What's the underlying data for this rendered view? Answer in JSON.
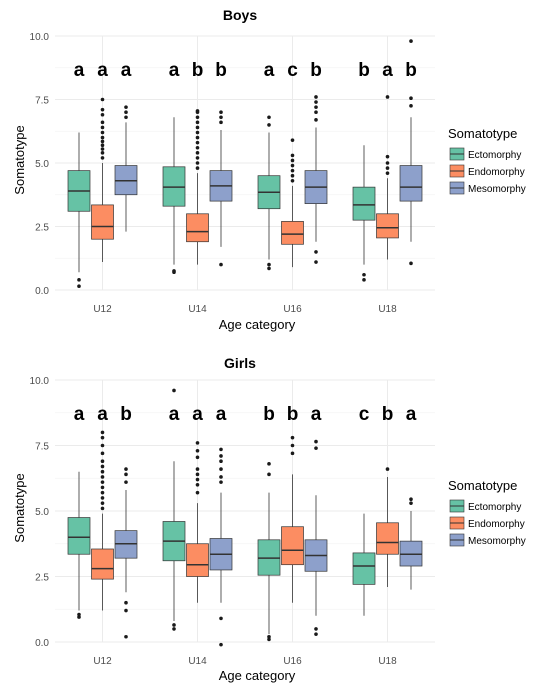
{
  "colors": {
    "Ectomorphy": "#66c2a5",
    "Endomorphy": "#fc8d62",
    "Mesomorphy": "#8da0cb",
    "grid": "#ebebeb",
    "text": "#000000",
    "axis_text": "#4d4d4d",
    "outline": "#333333"
  },
  "legend": {
    "title": "Somatotype",
    "items": [
      "Ectomorphy",
      "Endomorphy",
      "Mesomorphy"
    ]
  },
  "chart_data": [
    {
      "type": "box",
      "title": "Boys",
      "xlabel": "Age category",
      "ylabel": "Somatotype",
      "ylim": [
        0,
        10
      ],
      "yticks": [
        "0.0",
        "2.5",
        "5.0",
        "7.5",
        "10.0"
      ],
      "categories": [
        "U12",
        "U14",
        "U16",
        "U18"
      ],
      "series": [
        {
          "name": "Ectomorphy",
          "boxes": [
            {
              "whislo": 0.7,
              "q1": 3.1,
              "med": 3.9,
              "q3": 4.7,
              "whishi": 6.2,
              "fliers": [
                0.4,
                0.15
              ]
            },
            {
              "whislo": 1.0,
              "q1": 3.3,
              "med": 4.05,
              "q3": 4.85,
              "whishi": 6.8,
              "fliers": [
                0.75,
                0.7
              ]
            },
            {
              "whislo": 1.2,
              "q1": 3.2,
              "med": 3.85,
              "q3": 4.5,
              "whishi": 6.2,
              "fliers": [
                1.0,
                0.85,
                6.5,
                6.8
              ]
            },
            {
              "whislo": 1.0,
              "q1": 2.75,
              "med": 3.35,
              "q3": 4.05,
              "whishi": 5.7,
              "fliers": [
                0.6,
                0.4
              ]
            }
          ]
        },
        {
          "name": "Endomorphy",
          "boxes": [
            {
              "whislo": 1.1,
              "q1": 2.0,
              "med": 2.5,
              "q3": 3.35,
              "whishi": 5.0,
              "fliers": [
                5.2,
                5.4,
                5.55,
                5.7,
                5.85,
                6.0,
                6.2,
                6.4,
                6.6,
                6.9,
                7.1,
                7.5
              ]
            },
            {
              "whislo": 1.0,
              "q1": 1.9,
              "med": 2.3,
              "q3": 3.0,
              "whishi": 4.6,
              "fliers": [
                4.8,
                5.0,
                5.2,
                5.4,
                5.6,
                5.8,
                6.0,
                6.2,
                6.4,
                6.6,
                6.8,
                7.0,
                7.05
              ]
            },
            {
              "whislo": 0.9,
              "q1": 1.8,
              "med": 2.2,
              "q3": 2.7,
              "whishi": 4.1,
              "fliers": [
                4.3,
                4.5,
                4.7,
                4.9,
                5.1,
                5.3,
                5.9
              ]
            },
            {
              "whislo": 1.2,
              "q1": 2.05,
              "med": 2.45,
              "q3": 3.0,
              "whishi": 4.4,
              "fliers": [
                4.6,
                4.8,
                5.0,
                5.25,
                7.6
              ]
            }
          ]
        },
        {
          "name": "Mesomorphy",
          "boxes": [
            {
              "whislo": 2.3,
              "q1": 3.75,
              "med": 4.3,
              "q3": 4.9,
              "whishi": 6.6,
              "fliers": [
                6.8,
                7.0,
                7.2
              ]
            },
            {
              "whislo": 1.7,
              "q1": 3.5,
              "med": 4.1,
              "q3": 4.7,
              "whishi": 6.3,
              "fliers": [
                6.6,
                6.8,
                7.0,
                1.0
              ]
            },
            {
              "whislo": 1.9,
              "q1": 3.4,
              "med": 4.05,
              "q3": 4.7,
              "whishi": 6.4,
              "fliers": [
                1.5,
                1.1,
                6.7,
                7.0,
                7.2,
                7.4,
                7.6
              ]
            },
            {
              "whislo": 1.9,
              "q1": 3.5,
              "med": 4.05,
              "q3": 4.9,
              "whishi": 6.8,
              "fliers": [
                1.05,
                7.25,
                7.55,
                9.8
              ]
            }
          ]
        }
      ],
      "letters": [
        [
          "a",
          "a",
          "a"
        ],
        [
          "a",
          "b",
          "b"
        ],
        [
          "a",
          "c",
          "b"
        ],
        [
          "b",
          "a",
          "b"
        ]
      ]
    },
    {
      "type": "box",
      "title": "Girls",
      "xlabel": "Age category",
      "ylabel": "Somatotype",
      "ylim": [
        0,
        10
      ],
      "yticks": [
        "0.0",
        "2.5",
        "5.0",
        "7.5",
        "10.0"
      ],
      "categories": [
        "U12",
        "U14",
        "U16",
        "U18"
      ],
      "series": [
        {
          "name": "Ectomorphy",
          "boxes": [
            {
              "whislo": 1.2,
              "q1": 3.35,
              "med": 4.0,
              "q3": 4.75,
              "whishi": 6.5,
              "fliers": [
                1.05,
                0.95
              ]
            },
            {
              "whislo": 0.8,
              "q1": 3.1,
              "med": 3.85,
              "q3": 4.6,
              "whishi": 6.9,
              "fliers": [
                0.65,
                0.5,
                9.6
              ]
            },
            {
              "whislo": 0.3,
              "q1": 2.55,
              "med": 3.2,
              "q3": 3.9,
              "whishi": 5.7,
              "fliers": [
                0.2,
                0.1,
                6.4,
                6.8
              ]
            },
            {
              "whislo": 1.0,
              "q1": 2.2,
              "med": 2.9,
              "q3": 3.4,
              "whishi": 4.9,
              "fliers": []
            }
          ]
        },
        {
          "name": "Endomorphy",
          "boxes": [
            {
              "whislo": 1.2,
              "q1": 2.4,
              "med": 2.8,
              "q3": 3.55,
              "whishi": 4.9,
              "fliers": [
                5.1,
                5.3,
                5.5,
                5.7,
                5.9,
                6.1,
                6.3,
                6.5,
                6.7,
                6.9,
                7.2,
                7.5,
                7.8,
                8.0
              ]
            },
            {
              "whislo": 1.5,
              "q1": 2.5,
              "med": 2.95,
              "q3": 3.75,
              "whishi": 5.3,
              "fliers": [
                5.7,
                6.0,
                6.2,
                6.4,
                6.6,
                7.05,
                7.3,
                7.6
              ]
            },
            {
              "whislo": 1.5,
              "q1": 2.95,
              "med": 3.5,
              "q3": 4.4,
              "whishi": 6.4,
              "fliers": [
                7.2,
                7.5,
                7.8
              ]
            },
            {
              "whislo": 2.1,
              "q1": 3.35,
              "med": 3.8,
              "q3": 4.55,
              "whishi": 6.3,
              "fliers": [
                6.6
              ]
            }
          ]
        },
        {
          "name": "Mesomorphy",
          "boxes": [
            {
              "whislo": 1.9,
              "q1": 3.2,
              "med": 3.75,
              "q3": 4.25,
              "whishi": 5.8,
              "fliers": [
                6.1,
                6.4,
                6.6,
                1.5,
                1.2,
                0.2
              ]
            },
            {
              "whislo": 1.5,
              "q1": 2.75,
              "med": 3.35,
              "q3": 3.95,
              "whishi": 5.7,
              "fliers": [
                6.1,
                6.3,
                6.6,
                6.9,
                7.1,
                7.35,
                0.9,
                -0.1
              ]
            },
            {
              "whislo": 1.0,
              "q1": 2.7,
              "med": 3.3,
              "q3": 3.9,
              "whishi": 5.6,
              "fliers": [
                0.5,
                0.3,
                7.4,
                7.65
              ]
            },
            {
              "whislo": 2.0,
              "q1": 2.9,
              "med": 3.35,
              "q3": 3.85,
              "whishi": 5.0,
              "fliers": [
                5.3,
                5.45
              ]
            }
          ]
        }
      ],
      "letters": [
        [
          "a",
          "a",
          "b"
        ],
        [
          "a",
          "a",
          "a"
        ],
        [
          "b",
          "b",
          "a"
        ],
        [
          "c",
          "b",
          "a"
        ]
      ]
    }
  ]
}
